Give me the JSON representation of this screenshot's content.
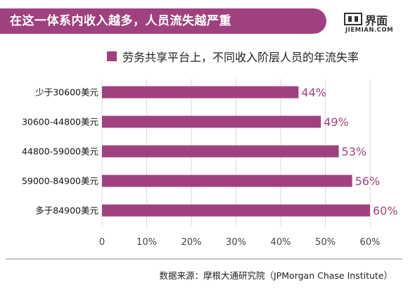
{
  "header": {
    "title": "在这一体系内收入越多，人员流失越严重"
  },
  "logo": {
    "cn": "界面",
    "en": "JIEMIAN.COM"
  },
  "legend": {
    "label": "劳务共享平台上，不同收入阶层人员的年流失率",
    "color": "#a0417f"
  },
  "source": "数据来源：摩根大通研究院（JPMorgan Chase Institute）",
  "chart_data": {
    "type": "bar",
    "orientation": "horizontal",
    "categories": [
      "少于30600美元",
      "30600-44800美元",
      "44800-59000美元",
      "59000-84900美元",
      "多于84900美元"
    ],
    "values": [
      44,
      49,
      53,
      56,
      60
    ],
    "value_labels": [
      "44%",
      "49%",
      "53%",
      "56%",
      "60%"
    ],
    "xlim": [
      0,
      60
    ],
    "x_ticks": [
      "0",
      "10%",
      "20%",
      "30%",
      "40%",
      "50%",
      "60%"
    ],
    "x_tick_values": [
      0,
      10,
      20,
      30,
      40,
      50,
      60
    ],
    "grid": true,
    "bar_color": "#a0417f",
    "label_color": "#a0417f",
    "grid_color": "#d9d9d9"
  }
}
